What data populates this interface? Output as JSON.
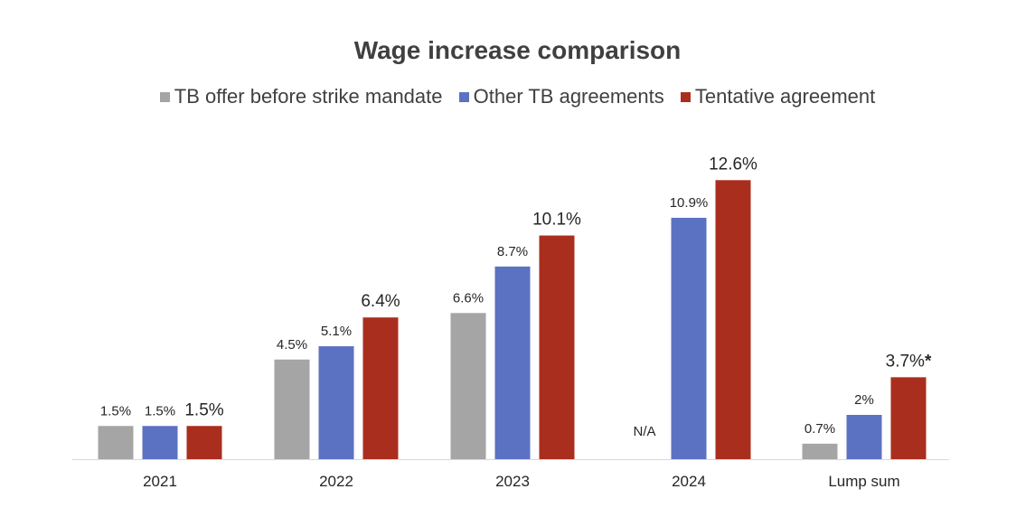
{
  "chart_data": {
    "type": "bar",
    "title": "Wage increase comparison",
    "categories": [
      "2021",
      "2022",
      "2023",
      "2024",
      "Lump sum"
    ],
    "series": [
      {
        "name": "TB offer before strike mandate",
        "color": "#a5a5a5",
        "values": [
          1.5,
          4.5,
          6.6,
          null,
          0.7
        ],
        "labels": [
          "1.5%",
          "4.5%",
          "6.6%",
          "N/A",
          "0.7%"
        ]
      },
      {
        "name": "Other TB agreements",
        "color": "#5b72c2",
        "values": [
          1.5,
          5.1,
          8.7,
          10.9,
          2
        ],
        "labels": [
          "1.5%",
          "5.1%",
          "8.7%",
          "10.9%",
          "2%"
        ]
      },
      {
        "name": "Tentative agreement",
        "color": "#aa2e1e",
        "values": [
          1.5,
          6.4,
          10.1,
          12.6,
          3.7
        ],
        "labels": [
          "1.5%",
          "6.4%",
          "10.1%",
          "12.6%",
          "3.7%"
        ]
      }
    ],
    "annotations": [
      {
        "category": "Lump sum",
        "series": "Tentative agreement",
        "text": "*"
      }
    ],
    "xlabel": "",
    "ylabel": "",
    "ylim": [
      0,
      14
    ],
    "grid": false,
    "legend": "top-center"
  }
}
